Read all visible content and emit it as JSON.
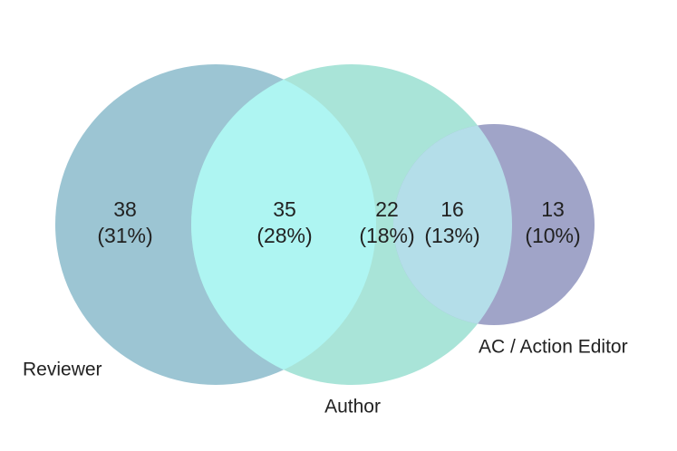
{
  "chart_data": {
    "type": "venn",
    "sets": [
      {
        "name": "Reviewer",
        "color": "#9cc5d3"
      },
      {
        "name": "Author",
        "color": "#a9e4d8"
      },
      {
        "name": "AC / Action Editor",
        "color": "#a0a4c8"
      }
    ],
    "values": [
      38,
      35,
      22,
      16,
      13
    ],
    "percentages": {
      "values": [
        31,
        28,
        18,
        13,
        10
      ],
      "value_labels": [
        "(31%)",
        "(28%)",
        "(18%)",
        "(13%)",
        "(10%)"
      ]
    }
  }
}
